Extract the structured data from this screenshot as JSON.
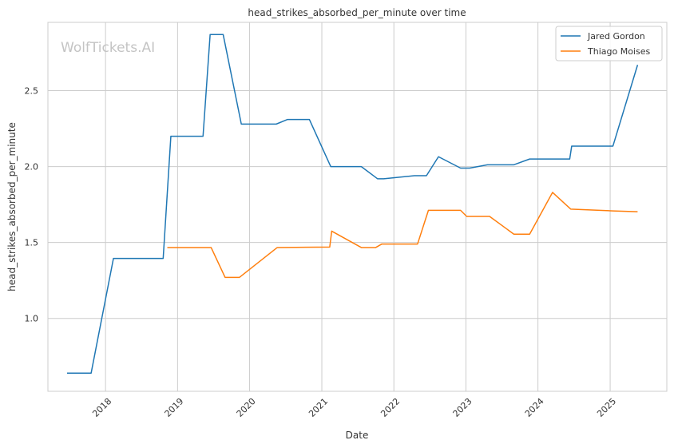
{
  "chart_data": {
    "type": "line",
    "title": "head_strikes_absorbed_per_minute over time",
    "xlabel": "Date",
    "ylabel": "head_strikes_absorbed_per_minute",
    "watermark": "WolfTickets.AI",
    "x_ticks": [
      "2018",
      "2019",
      "2020",
      "2021",
      "2022",
      "2023",
      "2024",
      "2025"
    ],
    "y_ticks": [
      "1.0",
      "1.5",
      "2.0",
      "2.5"
    ],
    "xlim": [
      "2017-03-15",
      "2025-10-15"
    ],
    "ylim": [
      0.52,
      2.95
    ],
    "grid": true,
    "legend_position": "top-right",
    "series": [
      {
        "name": "Jared Gordon",
        "color": "#1f77b4",
        "points": [
          [
            "2017-06-20",
            0.64
          ],
          [
            "2017-10-20",
            0.64
          ],
          [
            "2018-02-10",
            1.395
          ],
          [
            "2018-10-20",
            1.395
          ],
          [
            "2018-11-28",
            2.2
          ],
          [
            "2019-05-10",
            2.2
          ],
          [
            "2019-06-15",
            2.87
          ],
          [
            "2019-08-20",
            2.87
          ],
          [
            "2019-11-20",
            2.28
          ],
          [
            "2020-05-15",
            2.28
          ],
          [
            "2020-07-10",
            2.31
          ],
          [
            "2020-10-30",
            2.31
          ],
          [
            "2021-02-15",
            2.0
          ],
          [
            "2021-07-20",
            2.0
          ],
          [
            "2021-10-10",
            1.92
          ],
          [
            "2021-11-10",
            1.92
          ],
          [
            "2022-04-15",
            1.94
          ],
          [
            "2022-06-15",
            1.94
          ],
          [
            "2022-08-15",
            2.065
          ],
          [
            "2022-12-05",
            1.99
          ],
          [
            "2023-01-20",
            1.99
          ],
          [
            "2023-04-20",
            2.012
          ],
          [
            "2023-09-01",
            2.012
          ],
          [
            "2023-11-20",
            2.05
          ],
          [
            "2024-06-10",
            2.05
          ],
          [
            "2024-06-20",
            2.135
          ],
          [
            "2025-01-15",
            2.135
          ],
          [
            "2025-05-20",
            2.67
          ]
        ]
      },
      {
        "name": "Thiago Moises",
        "color": "#ff7f0e",
        "points": [
          [
            "2018-11-10",
            1.467
          ],
          [
            "2019-06-20",
            1.467
          ],
          [
            "2019-08-30",
            1.27
          ],
          [
            "2019-11-10",
            1.27
          ],
          [
            "2020-05-20",
            1.467
          ],
          [
            "2021-02-10",
            1.47
          ],
          [
            "2021-02-20",
            1.575
          ],
          [
            "2021-07-20",
            1.467
          ],
          [
            "2021-10-01",
            1.467
          ],
          [
            "2021-11-01",
            1.49
          ],
          [
            "2022-05-01",
            1.49
          ],
          [
            "2022-06-25",
            1.712
          ],
          [
            "2022-12-05",
            1.712
          ],
          [
            "2023-01-05",
            1.672
          ],
          [
            "2023-05-01",
            1.672
          ],
          [
            "2023-09-01",
            1.555
          ],
          [
            "2023-11-20",
            1.555
          ],
          [
            "2024-03-15",
            1.83
          ],
          [
            "2024-06-15",
            1.72
          ],
          [
            "2025-01-15",
            1.708
          ],
          [
            "2025-05-20",
            1.703
          ]
        ]
      }
    ]
  }
}
